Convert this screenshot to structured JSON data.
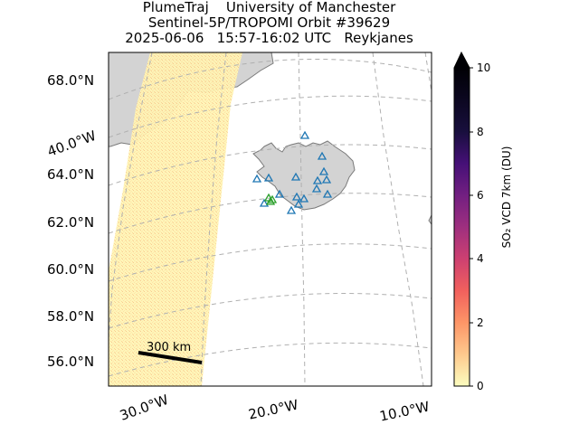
{
  "title": {
    "line1": "PlumeTraj    University of Manchester",
    "line2": "Sentinel-5P/TROPOMI Orbit #39629",
    "line3": "2025-06-06   15:57-16:02 UTC   Reykjanes"
  },
  "latitude_labels": [
    "68.0°N",
    "64.0°N",
    "62.0°N",
    "60.0°N",
    "58.0°N",
    "56.0°N"
  ],
  "longitude_labels": [
    "40.0°W",
    "30.0°W",
    "20.0°W",
    "10.0°W"
  ],
  "colorbar": {
    "label": "SO₂ VCD 7km (DU)",
    "ticks": [
      "0",
      "2",
      "4",
      "6",
      "8",
      "10"
    ],
    "min": 0,
    "max": 10,
    "colormap": "magma_r",
    "extend": "max"
  },
  "scale_bar": {
    "label": "300 km"
  },
  "legend_markers": {
    "volcano_marker_color": "#1f77b4",
    "target_volcano_marker_color": "#2ca02c"
  },
  "colors": {
    "land": "#d3d3d3",
    "coast": "#7a7a7a",
    "swath": "#fff5b8",
    "gridline": "#b0b0b0"
  }
}
